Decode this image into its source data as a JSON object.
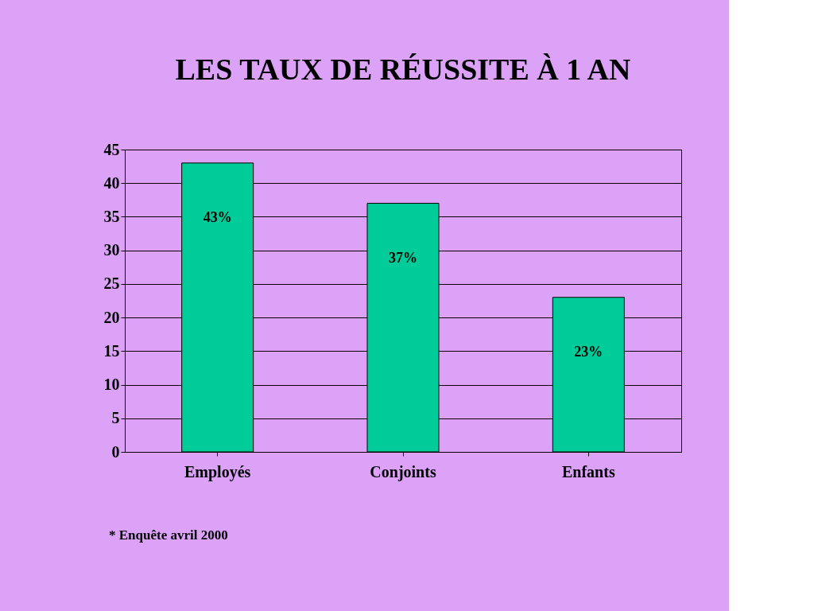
{
  "chart_data": {
    "type": "bar",
    "title": "LES TAUX DE RÉUSSITE À 1 AN",
    "categories": [
      "Employés",
      "Conjoints",
      "Enfants"
    ],
    "values": [
      43,
      37,
      23
    ],
    "value_labels": [
      "43%",
      "37%",
      "23%"
    ],
    "color": "#00cc99",
    "ylim": [
      0,
      45
    ],
    "yticks": [
      0,
      5,
      10,
      15,
      20,
      25,
      30,
      35,
      40,
      45
    ],
    "grid": "y",
    "annotations": [
      "* Enquête avril 2000"
    ]
  }
}
